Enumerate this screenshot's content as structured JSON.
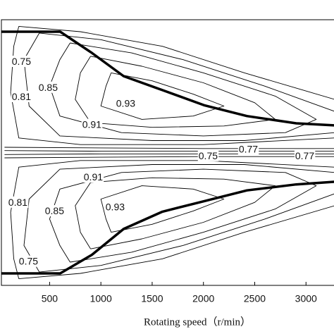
{
  "chart_data": {
    "type": "contour",
    "x_label": "Rotating speed（r/min）",
    "xlim": [
      30,
      3280
    ],
    "ylim": [
      -200,
      200
    ],
    "xticks": [
      500,
      1000,
      1500,
      2000,
      2500,
      3000
    ],
    "boundary": [
      {
        "x": [
          30,
          603,
          912,
          1222,
          1600,
          2012,
          2424,
          2905,
          3277
        ],
        "y": [
          182,
          182,
          150,
          115,
          94,
          71,
          55,
          44,
          41
        ]
      },
      {
        "x": [
          30,
          603,
          912,
          1222,
          1600,
          2012,
          2424,
          2905,
          3277
        ],
        "y": [
          -182,
          -182,
          -154,
          -115,
          -89,
          -73,
          -57,
          -48,
          -44
        ]
      }
    ],
    "contours": [
      {
        "x": [
          1100,
          1500,
          1900,
          2200,
          1900,
          1400,
          1000,
          1050,
          1100
        ],
        "y": [
          120,
          108,
          88,
          70,
          55,
          50,
          70,
          100,
          120
        ]
      },
      {
        "x": [
          900,
          1400,
          2000,
          2500,
          2700,
          2200,
          1500,
          900,
          750,
          800,
          900
        ],
        "y": [
          145,
          130,
          105,
          75,
          50,
          40,
          38,
          45,
          80,
          120,
          145
        ]
      },
      {
        "x": [
          700,
          1300,
          2000,
          2700,
          3100,
          2800,
          2000,
          1200,
          600,
          500,
          600,
          700
        ],
        "y": [
          165,
          150,
          120,
          85,
          50,
          30,
          25,
          30,
          55,
          100,
          140,
          165
        ]
      },
      {
        "x": [
          400,
          1000,
          1800,
          2600,
          3280,
          3280,
          2400,
          1500,
          600,
          300,
          250,
          400
        ],
        "y": [
          180,
          170,
          140,
          100,
          62,
          30,
          18,
          18,
          25,
          70,
          140,
          180
        ]
      },
      {
        "x": [
          200,
          800,
          1600,
          2400,
          3280,
          3280,
          2000,
          800,
          200,
          120,
          150,
          200
        ],
        "y": [
          190,
          182,
          160,
          120,
          80,
          22,
          12,
          12,
          22,
          90,
          160,
          190
        ]
      },
      {
        "x": [
          1100,
          1500,
          1900,
          2200,
          1900,
          1400,
          1000,
          1050,
          1100
        ],
        "y": [
          -120,
          -108,
          -88,
          -70,
          -55,
          -50,
          -70,
          -100,
          -120
        ]
      },
      {
        "x": [
          900,
          1400,
          2000,
          2500,
          2700,
          2200,
          1500,
          900,
          750,
          800,
          900
        ],
        "y": [
          -145,
          -130,
          -105,
          -75,
          -50,
          -40,
          -38,
          -45,
          -80,
          -120,
          -145
        ]
      },
      {
        "x": [
          700,
          1300,
          2000,
          2700,
          3100,
          2800,
          2000,
          1200,
          600,
          500,
          600,
          700
        ],
        "y": [
          -165,
          -150,
          -120,
          -85,
          -50,
          -30,
          -25,
          -30,
          -55,
          -100,
          -140,
          -165
        ]
      },
      {
        "x": [
          400,
          1000,
          1800,
          2600,
          3280,
          3280,
          2400,
          1500,
          600,
          300,
          250,
          400
        ],
        "y": [
          -180,
          -170,
          -140,
          -100,
          -62,
          -30,
          -18,
          -18,
          -25,
          -70,
          -140,
          -180
        ]
      },
      {
        "x": [
          200,
          800,
          1600,
          2400,
          3280,
          3280,
          2000,
          800,
          200,
          120,
          150,
          200
        ],
        "y": [
          -190,
          -182,
          -160,
          -120,
          -80,
          -22,
          -12,
          -12,
          -22,
          -90,
          -160,
          -190
        ]
      },
      {
        "x": [
          60,
          1000,
          2000,
          3280
        ],
        "y": [
          8,
          7,
          6,
          6
        ]
      },
      {
        "x": [
          60,
          1000,
          2000,
          3280
        ],
        "y": [
          -8,
          -7,
          -6,
          -6
        ]
      },
      {
        "x": [
          60,
          1000,
          2000,
          3280
        ],
        "y": [
          3,
          2,
          2,
          2
        ]
      },
      {
        "x": [
          60,
          1000,
          2000,
          3280
        ],
        "y": [
          -3,
          -2,
          -2,
          -2
        ]
      }
    ],
    "labels": [
      {
        "level": 0.75,
        "x": 225,
        "y": 136
      },
      {
        "level": 0.81,
        "x": 225,
        "y": 83
      },
      {
        "level": 0.85,
        "x": 486,
        "y": 97
      },
      {
        "level": 0.93,
        "x": 1242,
        "y": 73
      },
      {
        "level": 0.91,
        "x": 912,
        "y": 41
      },
      {
        "level": 0.75,
        "x": 2046,
        "y": -6
      },
      {
        "level": 0.77,
        "x": 2438,
        "y": 4
      },
      {
        "level": 0.77,
        "x": 2988,
        "y": -6
      },
      {
        "level": 0.91,
        "x": 926,
        "y": -38
      },
      {
        "level": 0.81,
        "x": 191,
        "y": -76
      },
      {
        "level": 0.85,
        "x": 548,
        "y": -89
      },
      {
        "level": 0.93,
        "x": 1139,
        "y": -83
      },
      {
        "level": 0.75,
        "x": 294,
        "y": -165
      }
    ]
  }
}
